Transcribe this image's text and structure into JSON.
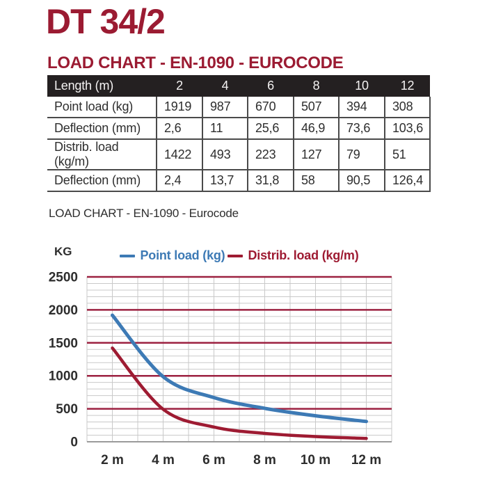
{
  "page": {
    "title": "DT 34/2",
    "subtitle": "LOAD CHART - EN-1090 - EUROCODE",
    "section_caption": "LOAD CHART - EN-1090 - Eurocode"
  },
  "colors": {
    "brand_red": "#9B1B32",
    "table_header_bg": "#242021",
    "table_border": "#4a4a4a",
    "grid_minor": "#c9c9c9",
    "grid_major": "#9c2140",
    "axis_line": "#9a9a9a",
    "series_blue": "#3d7ab5",
    "series_red": "#9e1b32",
    "tick_text": "#2d2d2d"
  },
  "table": {
    "header": [
      "Length (m)",
      "2",
      "4",
      "6",
      "8",
      "10",
      "12"
    ],
    "rows": [
      {
        "label": "Point load (kg)",
        "values": [
          "1919",
          "987",
          "670",
          "507",
          "394",
          "308"
        ]
      },
      {
        "label": "Deflection (mm)",
        "values": [
          "2,6",
          "11",
          "25,6",
          "46,9",
          "73,6",
          "103,6"
        ]
      },
      {
        "label": "Distrib. load (kg/m)",
        "values": [
          "1422",
          "493",
          "223",
          "127",
          "79",
          "51"
        ]
      },
      {
        "label": "Deflection (mm)",
        "values": [
          "2,4",
          "13,7",
          "31,8",
          "58",
          "90,5",
          "126,4"
        ]
      }
    ]
  },
  "chart_data": {
    "type": "line",
    "title": "LOAD CHART - EN-1090 - Eurocode",
    "unit_label": "KG",
    "x": [
      2,
      4,
      6,
      8,
      10,
      12
    ],
    "x_tick_labels": [
      "2 m",
      "4 m",
      "6 m",
      "8 m",
      "10 m",
      "12 m"
    ],
    "series": [
      {
        "name": "Point load (kg)",
        "color": "#3d7ab5",
        "values": [
          1919,
          987,
          670,
          507,
          394,
          308
        ]
      },
      {
        "name": "Distrib. load (kg/m)",
        "color": "#9e1b32",
        "values": [
          1422,
          493,
          223,
          127,
          79,
          51
        ]
      }
    ],
    "xlim": [
      1,
      13
    ],
    "ylim": [
      0,
      2500
    ],
    "y_ticks": [
      0,
      500,
      1000,
      1500,
      2000,
      2500
    ],
    "minor_y_step": 100,
    "major_y_step": 500,
    "x_grid_step": 1,
    "grid": true,
    "legend_position": "top",
    "curve_smoothing": true
  }
}
